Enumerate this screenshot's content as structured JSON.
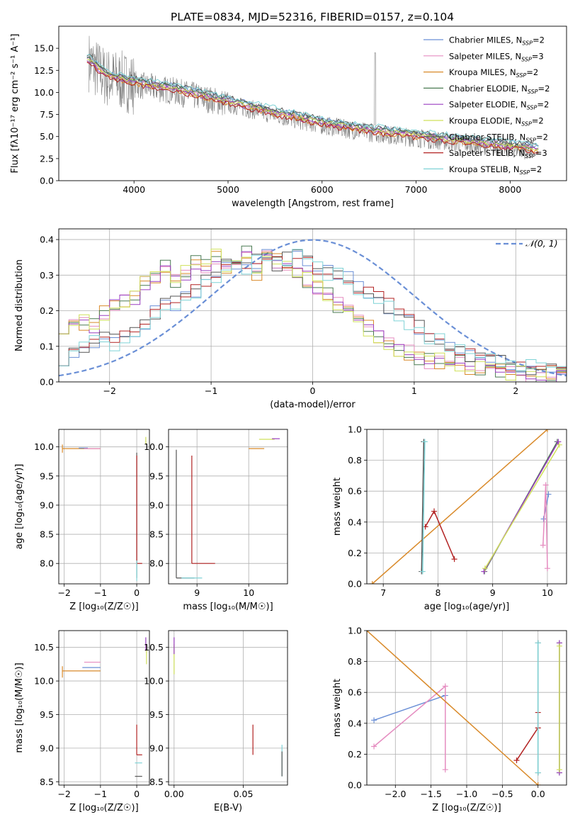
{
  "figure_title": "PLATE=0834, MJD=52316, FIBERID=0157, z=0.104",
  "colors": {
    "model_palette": [
      "#6a8fd6",
      "#e58cc0",
      "#d98a2a",
      "#4a7a52",
      "#9a3fc0",
      "#cfe05a",
      "#555555",
      "#b22222",
      "#7fd3d6"
    ],
    "observed": "#808080",
    "normal_curve": "#6a8fd6",
    "grid": "#b0b0b0"
  },
  "models": [
    "Chabrier MILES, N_SSP=2",
    "Salpeter MILES, N_SSP=3",
    "Kroupa MILES, N_SSP=2",
    "Chabrier ELODIE, N_SSP=2",
    "Salpeter ELODIE, N_SSP=2",
    "Kroupa ELODIE, N_SSP=2",
    "Chabrier STELIB, N_SSP=2",
    "Salpeter STELIB, N_SSP=3",
    "Kroupa STELIB, N_SSP=2"
  ],
  "chart_data": [
    {
      "id": "spectrum",
      "type": "line",
      "xlabel": "wavelength [Angstrom, rest frame]",
      "ylabel": "Flux [fλ10⁻¹⁷ erg cm⁻² s⁻¹ A⁻¹]",
      "xlim": [
        3200,
        8600
      ],
      "ylim": [
        0,
        17.5
      ],
      "xticks": [
        4000,
        5000,
        6000,
        7000,
        8000
      ],
      "yticks": [
        0.0,
        2.5,
        5.0,
        7.5,
        10.0,
        12.5,
        15.0
      ],
      "grid": false,
      "legend": "upper right",
      "model_trend": {
        "x": [
          3500,
          3700,
          3900,
          4100,
          4400,
          4800,
          5200,
          5600,
          6000,
          6400,
          6800,
          7200,
          7600,
          8000,
          8300
        ],
        "y": [
          14.0,
          12.0,
          11.5,
          11.0,
          10.5,
          9.5,
          8.5,
          7.5,
          6.6,
          5.9,
          5.4,
          4.9,
          4.4,
          4.0,
          3.6
        ]
      },
      "model_offsets": [
        0.3,
        0.1,
        -0.2,
        0.2,
        -0.1,
        0.0,
        0.4,
        -0.3,
        0.5
      ]
    },
    {
      "id": "residual_hist",
      "type": "step",
      "xlabel": "(data-model)/error",
      "ylabel": "Normed distribution",
      "xlim": [
        -2.5,
        2.5
      ],
      "ylim": [
        0,
        0.43
      ],
      "xticks": [
        -2,
        -1,
        0,
        1,
        2
      ],
      "yticks": [
        0.0,
        0.1,
        0.2,
        0.3,
        0.4
      ],
      "grid": true,
      "legend": "upper right",
      "normal_label": "𝒩(0, 1)",
      "bin_start": -2.5,
      "bin_width": 0.1,
      "shape_a": [
        0.16,
        0.15,
        0.17,
        0.16,
        0.19,
        0.21,
        0.23,
        0.24,
        0.28,
        0.3,
        0.32,
        0.29,
        0.31,
        0.34,
        0.33,
        0.35,
        0.32,
        0.34,
        0.36,
        0.31,
        0.35,
        0.34,
        0.32,
        0.3,
        0.29,
        0.27,
        0.25,
        0.22,
        0.2,
        0.18,
        0.15,
        0.12,
        0.1,
        0.09,
        0.08,
        0.07,
        0.06,
        0.06,
        0.05,
        0.05,
        0.04,
        0.04,
        0.04,
        0.03,
        0.03,
        0.03,
        0.02,
        0.02,
        0.02,
        0.02
      ],
      "shape_b": [
        0.07,
        0.09,
        0.1,
        0.11,
        0.12,
        0.11,
        0.13,
        0.15,
        0.17,
        0.19,
        0.21,
        0.22,
        0.24,
        0.26,
        0.28,
        0.3,
        0.32,
        0.33,
        0.31,
        0.34,
        0.35,
        0.33,
        0.34,
        0.35,
        0.34,
        0.32,
        0.31,
        0.3,
        0.29,
        0.27,
        0.25,
        0.23,
        0.21,
        0.19,
        0.17,
        0.15,
        0.13,
        0.12,
        0.1,
        0.09,
        0.08,
        0.07,
        0.06,
        0.05,
        0.05,
        0.04,
        0.04,
        0.03,
        0.03,
        0.02
      ],
      "model_shape": [
        "b",
        "a",
        "a",
        "a",
        "a",
        "a",
        "b",
        "b",
        "b"
      ]
    },
    {
      "id": "age_vs_Z",
      "type": "scatter",
      "xlabel": "Z [log₁₀(Z/Z☉)]",
      "ylabel": "age [log₁₀(age/yr)]",
      "xlim": [
        -2.15,
        0.35
      ],
      "ylim": [
        7.65,
        10.3
      ],
      "xticks": [
        -2,
        -1,
        0
      ],
      "yticks": [
        8.0,
        8.5,
        9.0,
        9.5,
        10.0
      ],
      "grid": true
    },
    {
      "id": "age_vs_mass",
      "type": "scatter",
      "xlabel": "mass [log₁₀(M/M☉)]",
      "ylabel": "",
      "xlim": [
        8.45,
        10.75
      ],
      "ylim": [
        7.65,
        10.3
      ],
      "xticks": [
        9,
        10
      ],
      "yticks": [
        8.0,
        8.5,
        9.0,
        9.5,
        10.0
      ],
      "grid": true
    },
    {
      "id": "weight_vs_age",
      "type": "line",
      "xlabel": "age [log₁₀(age/yr)]",
      "ylabel": "mass weight",
      "xlim": [
        6.7,
        10.35
      ],
      "ylim": [
        0,
        1.0
      ],
      "xticks": [
        7,
        8,
        9,
        10
      ],
      "yticks": [
        0.0,
        0.2,
        0.4,
        0.6,
        0.8,
        1.0
      ],
      "grid": true,
      "series": [
        {
          "model": 0,
          "x": [
            9.93,
            10.02
          ],
          "y": [
            0.42,
            0.58
          ]
        },
        {
          "model": 1,
          "x": [
            9.92,
            9.97,
            10.0
          ],
          "y": [
            0.25,
            0.64,
            0.1
          ]
        },
        {
          "model": 2,
          "x": [
            6.8,
            10.0
          ],
          "y": [
            0.0,
            1.0
          ]
        },
        {
          "model": 3,
          "x": [
            8.85,
            10.18
          ],
          "y": [
            0.08,
            0.92
          ]
        },
        {
          "model": 4,
          "x": [
            8.84,
            10.2
          ],
          "y": [
            0.08,
            0.92
          ]
        },
        {
          "model": 5,
          "x": [
            8.86,
            10.22
          ],
          "y": [
            0.1,
            0.9
          ]
        },
        {
          "model": 6,
          "x": [
            7.7,
            7.74
          ],
          "y": [
            0.08,
            0.92
          ]
        },
        {
          "model": 7,
          "x": [
            7.77,
            7.93,
            8.3
          ],
          "y": [
            0.37,
            0.47,
            0.16
          ]
        },
        {
          "model": 8,
          "x": [
            7.72,
            7.76
          ],
          "y": [
            0.08,
            0.92
          ]
        }
      ]
    },
    {
      "id": "mass_vs_Z",
      "type": "scatter",
      "xlabel": "Z [log₁₀(Z/Z☉)]",
      "ylabel": "mass [log₁₀(M/M☉)]",
      "xlim": [
        -2.15,
        0.35
      ],
      "ylim": [
        8.45,
        10.75
      ],
      "xticks": [
        -2,
        -1,
        0
      ],
      "yticks": [
        8.5,
        9.0,
        9.5,
        10.0,
        10.5
      ],
      "grid": true
    },
    {
      "id": "mass_vs_ebv",
      "type": "scatter",
      "xlabel": "E(B-V)",
      "ylabel": "",
      "xlim": [
        -0.004,
        0.082
      ],
      "ylim": [
        8.45,
        10.75
      ],
      "xticks": [
        0.0,
        0.05
      ],
      "yticks": [
        8.5,
        9.0,
        9.5,
        10.0,
        10.5
      ],
      "grid": true
    },
    {
      "id": "weight_vs_Z",
      "type": "line",
      "xlabel": "Z [log₁₀(Z/Z☉)]",
      "ylabel": "mass weight",
      "xlim": [
        -2.4,
        0.4
      ],
      "ylim": [
        0,
        1.0
      ],
      "xticks": [
        -2.0,
        -1.5,
        -1.0,
        -0.5,
        0.0
      ],
      "yticks": [
        0.0,
        0.2,
        0.4,
        0.6,
        0.8,
        1.0
      ],
      "grid": true,
      "series": [
        {
          "model": 0,
          "x": [
            -2.3,
            -1.3
          ],
          "y": [
            0.42,
            0.58
          ]
        },
        {
          "model": 1,
          "x": [
            -2.3,
            -1.3,
            -1.3
          ],
          "y": [
            0.25,
            0.64,
            0.1
          ]
        },
        {
          "model": 2,
          "x": [
            -2.4,
            0.0
          ],
          "y": [
            1.0,
            0.0
          ]
        },
        {
          "model": 3,
          "x": [
            0.3,
            0.3
          ],
          "y": [
            0.08,
            0.92
          ]
        },
        {
          "model": 4,
          "x": [
            0.3,
            0.3
          ],
          "y": [
            0.08,
            0.92
          ]
        },
        {
          "model": 5,
          "x": [
            0.3,
            0.3
          ],
          "y": [
            0.1,
            0.9
          ]
        },
        {
          "model": 6,
          "x": [
            0.0,
            0.0
          ],
          "y": [
            0.08,
            0.92
          ]
        },
        {
          "model": 7,
          "x": [
            -0.3,
            0.0,
            0.0
          ],
          "y": [
            0.16,
            0.37,
            0.47
          ]
        },
        {
          "model": 8,
          "x": [
            0.0,
            0.0
          ],
          "y": [
            0.08,
            0.92
          ]
        }
      ]
    }
  ]
}
